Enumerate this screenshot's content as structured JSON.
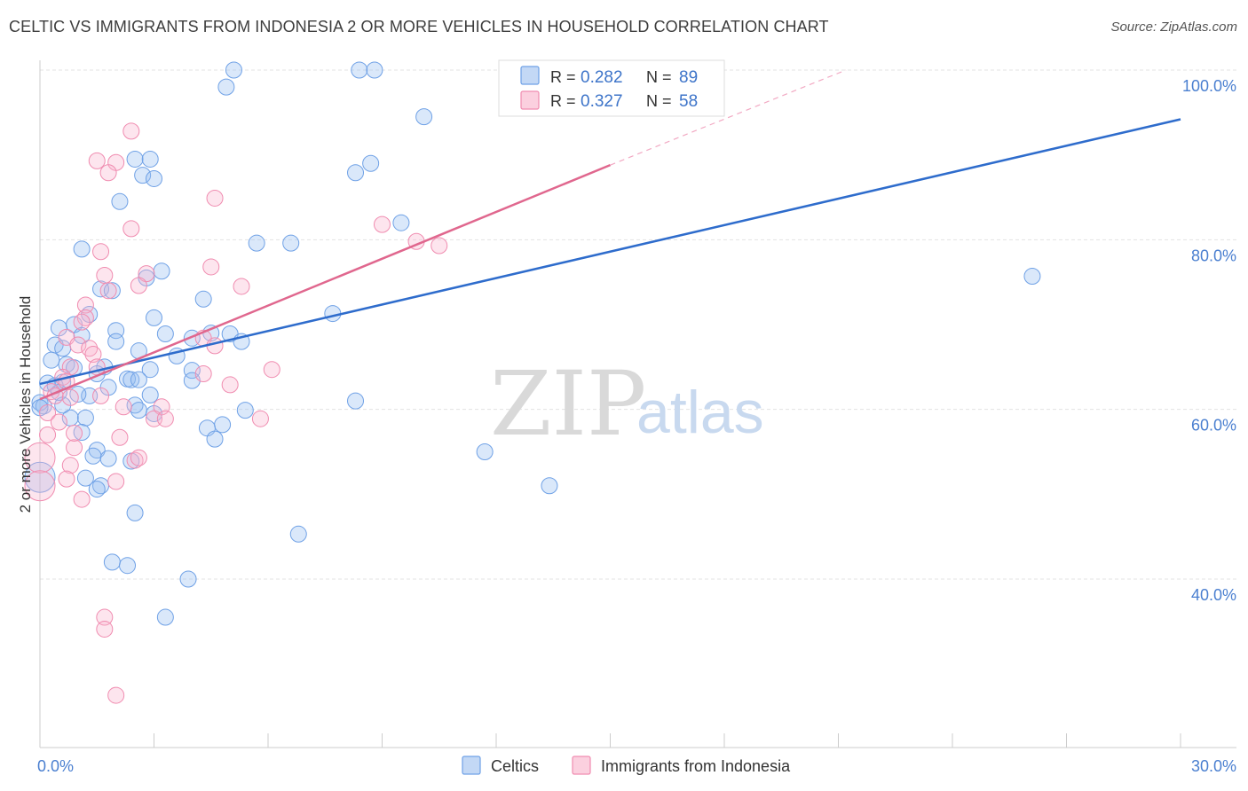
{
  "title": "CELTIC VS IMMIGRANTS FROM INDONESIA 2 OR MORE VEHICLES IN HOUSEHOLD CORRELATION CHART",
  "source": "Source: ZipAtlas.com",
  "watermark": {
    "zip": "ZIP",
    "atlas": "atlas"
  },
  "colors": {
    "celtics": "#6fa1e6",
    "celtics_line": "#2e6ccc",
    "indonesia": "#f08cb0",
    "indonesia_line": "#e0678e",
    "tick_label": "#4a7fd0",
    "grid": "#e3e3e3"
  },
  "chart_data": {
    "type": "scatter",
    "title": "CELTIC VS IMMIGRANTS FROM INDONESIA 2 OR MORE VEHICLES IN HOUSEHOLD CORRELATION CHART",
    "xlabel": "",
    "ylabel": "2 or more Vehicles in Household",
    "xlim": [
      0,
      30
    ],
    "ylim": [
      20,
      102
    ],
    "x_tick_labels": [
      "0.0%",
      "30.0%"
    ],
    "y_ticks": [
      40,
      60,
      80,
      100
    ],
    "y_tick_labels": [
      "40.0%",
      "60.0%",
      "80.0%",
      "100.0%"
    ],
    "grid": true,
    "legend": [
      {
        "name": "Celtics",
        "r_label": "R =",
        "r": "0.282",
        "n_label": "N =",
        "n": "89"
      },
      {
        "name": "Immigrants from Indonesia",
        "r_label": "R =",
        "r": "0.327",
        "n_label": "N =",
        "n": "58"
      }
    ],
    "series": [
      {
        "name": "Celtics",
        "trend": {
          "x": [
            0,
            30
          ],
          "y": [
            63.0,
            94.2
          ]
        },
        "points": [
          [
            5.1,
            100.0
          ],
          [
            8.4,
            100.0
          ],
          [
            8.8,
            100.0
          ],
          [
            4.9,
            98.0
          ],
          [
            10.1,
            94.5
          ],
          [
            2.5,
            89.5
          ],
          [
            2.9,
            89.5
          ],
          [
            8.7,
            89.0
          ],
          [
            2.7,
            87.6
          ],
          [
            3.0,
            87.2
          ],
          [
            8.3,
            87.9
          ],
          [
            2.1,
            84.5
          ],
          [
            9.5,
            82.0
          ],
          [
            5.7,
            79.6
          ],
          [
            6.6,
            79.6
          ],
          [
            1.1,
            78.9
          ],
          [
            3.2,
            76.3
          ],
          [
            26.1,
            75.7
          ],
          [
            2.8,
            75.5
          ],
          [
            1.6,
            74.2
          ],
          [
            1.9,
            74.0
          ],
          [
            4.3,
            73.0
          ],
          [
            1.3,
            71.2
          ],
          [
            7.7,
            71.3
          ],
          [
            3.0,
            70.8
          ],
          [
            0.5,
            69.6
          ],
          [
            0.9,
            70.0
          ],
          [
            2.0,
            69.3
          ],
          [
            3.3,
            68.9
          ],
          [
            4.5,
            69.0
          ],
          [
            5.0,
            68.9
          ],
          [
            1.1,
            68.7
          ],
          [
            4.0,
            68.4
          ],
          [
            5.3,
            68.0
          ],
          [
            2.0,
            68.0
          ],
          [
            0.4,
            67.6
          ],
          [
            0.6,
            67.2
          ],
          [
            2.6,
            66.9
          ],
          [
            3.6,
            66.3
          ],
          [
            0.3,
            65.8
          ],
          [
            0.7,
            65.3
          ],
          [
            0.9,
            64.9
          ],
          [
            1.7,
            65.0
          ],
          [
            2.9,
            64.7
          ],
          [
            4.0,
            64.6
          ],
          [
            1.5,
            64.2
          ],
          [
            2.3,
            63.6
          ],
          [
            2.4,
            63.5
          ],
          [
            4.0,
            63.4
          ],
          [
            0.2,
            63.1
          ],
          [
            0.6,
            63.2
          ],
          [
            1.8,
            62.6
          ],
          [
            0.5,
            62.0
          ],
          [
            2.9,
            61.7
          ],
          [
            1.3,
            61.6
          ],
          [
            0.0,
            60.8
          ],
          [
            0.1,
            60.4
          ],
          [
            0.6,
            60.5
          ],
          [
            2.5,
            60.5
          ],
          [
            2.6,
            59.9
          ],
          [
            5.4,
            59.9
          ],
          [
            8.3,
            61.0
          ],
          [
            0.8,
            59.0
          ],
          [
            1.2,
            59.0
          ],
          [
            3.0,
            59.5
          ],
          [
            4.8,
            58.2
          ],
          [
            4.4,
            57.8
          ],
          [
            1.1,
            57.3
          ],
          [
            4.6,
            56.5
          ],
          [
            11.7,
            55.0
          ],
          [
            1.5,
            55.2
          ],
          [
            1.4,
            54.5
          ],
          [
            1.8,
            54.2
          ],
          [
            2.4,
            53.9
          ],
          [
            0.0,
            52.0
          ],
          [
            1.2,
            51.9
          ],
          [
            1.6,
            51.0
          ],
          [
            1.5,
            50.6
          ],
          [
            13.4,
            51.0
          ],
          [
            2.5,
            47.8
          ],
          [
            6.8,
            45.3
          ],
          [
            1.9,
            42.0
          ],
          [
            2.3,
            41.6
          ],
          [
            3.9,
            40.0
          ],
          [
            3.3,
            35.5
          ],
          [
            0.0,
            60.2
          ],
          [
            2.6,
            63.5
          ],
          [
            0.4,
            62.8
          ],
          [
            1.0,
            61.8
          ]
        ]
      },
      {
        "name": "Immigrants from Indonesia",
        "trend": {
          "x": [
            0,
            15
          ],
          "y": [
            61.2,
            88.8
          ]
        },
        "trend_dashed": {
          "x": [
            15,
            21.2
          ],
          "y": [
            88.8,
            100.0
          ]
        },
        "points": [
          [
            2.4,
            92.8
          ],
          [
            1.5,
            89.3
          ],
          [
            2.0,
            89.1
          ],
          [
            1.8,
            87.9
          ],
          [
            4.6,
            84.9
          ],
          [
            9.0,
            81.8
          ],
          [
            2.4,
            81.3
          ],
          [
            9.9,
            79.8
          ],
          [
            10.5,
            79.3
          ],
          [
            1.6,
            78.6
          ],
          [
            4.5,
            76.8
          ],
          [
            2.8,
            76.0
          ],
          [
            1.7,
            75.8
          ],
          [
            2.6,
            74.6
          ],
          [
            5.3,
            74.5
          ],
          [
            1.8,
            74.0
          ],
          [
            1.2,
            72.3
          ],
          [
            1.2,
            70.8
          ],
          [
            1.1,
            70.3
          ],
          [
            0.7,
            68.5
          ],
          [
            4.3,
            68.4
          ],
          [
            1.0,
            67.6
          ],
          [
            4.6,
            67.5
          ],
          [
            1.3,
            67.2
          ],
          [
            1.4,
            66.5
          ],
          [
            0.8,
            65.0
          ],
          [
            1.5,
            65.0
          ],
          [
            0.6,
            63.8
          ],
          [
            6.1,
            64.7
          ],
          [
            0.7,
            63.3
          ],
          [
            4.3,
            64.2
          ],
          [
            5.0,
            62.9
          ],
          [
            0.3,
            62.1
          ],
          [
            0.4,
            61.6
          ],
          [
            0.8,
            61.4
          ],
          [
            1.6,
            61.6
          ],
          [
            2.2,
            60.3
          ],
          [
            3.2,
            60.3
          ],
          [
            0.2,
            59.6
          ],
          [
            3.0,
            58.9
          ],
          [
            3.3,
            58.9
          ],
          [
            5.8,
            58.9
          ],
          [
            0.5,
            58.5
          ],
          [
            0.2,
            57.0
          ],
          [
            2.1,
            56.7
          ],
          [
            0.9,
            55.5
          ],
          [
            0.0,
            54.3
          ],
          [
            2.5,
            54.0
          ],
          [
            0.8,
            53.4
          ],
          [
            0.7,
            51.8
          ],
          [
            2.0,
            51.5
          ],
          [
            0.0,
            51.0
          ],
          [
            1.1,
            49.4
          ],
          [
            1.7,
            35.5
          ],
          [
            1.7,
            34.1
          ],
          [
            2.0,
            26.3
          ],
          [
            2.6,
            54.3
          ],
          [
            0.9,
            57.2
          ]
        ]
      }
    ]
  }
}
